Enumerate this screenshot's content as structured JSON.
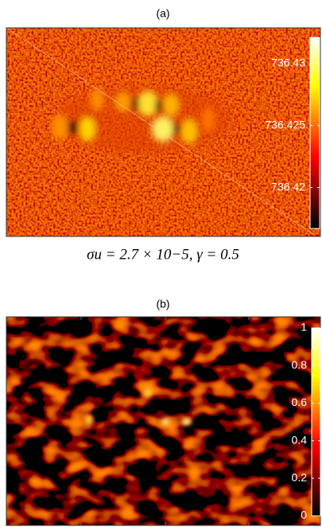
{
  "chart_data": [
    {
      "type": "heatmap",
      "title": "(a)",
      "xlabel": "σu = 2.7 × 10−5, γ = 0.5",
      "colormap": "hot",
      "clim": [
        736.4167,
        736.4321
      ],
      "cticks": [
        736.42,
        736.425,
        736.43
      ]
    },
    {
      "type": "heatmap",
      "title": "(b)",
      "colormap": "hot",
      "clim": [
        0,
        1
      ],
      "cticks": [
        0,
        0.2,
        0.4,
        0.6,
        0.8,
        1
      ]
    }
  ]
}
